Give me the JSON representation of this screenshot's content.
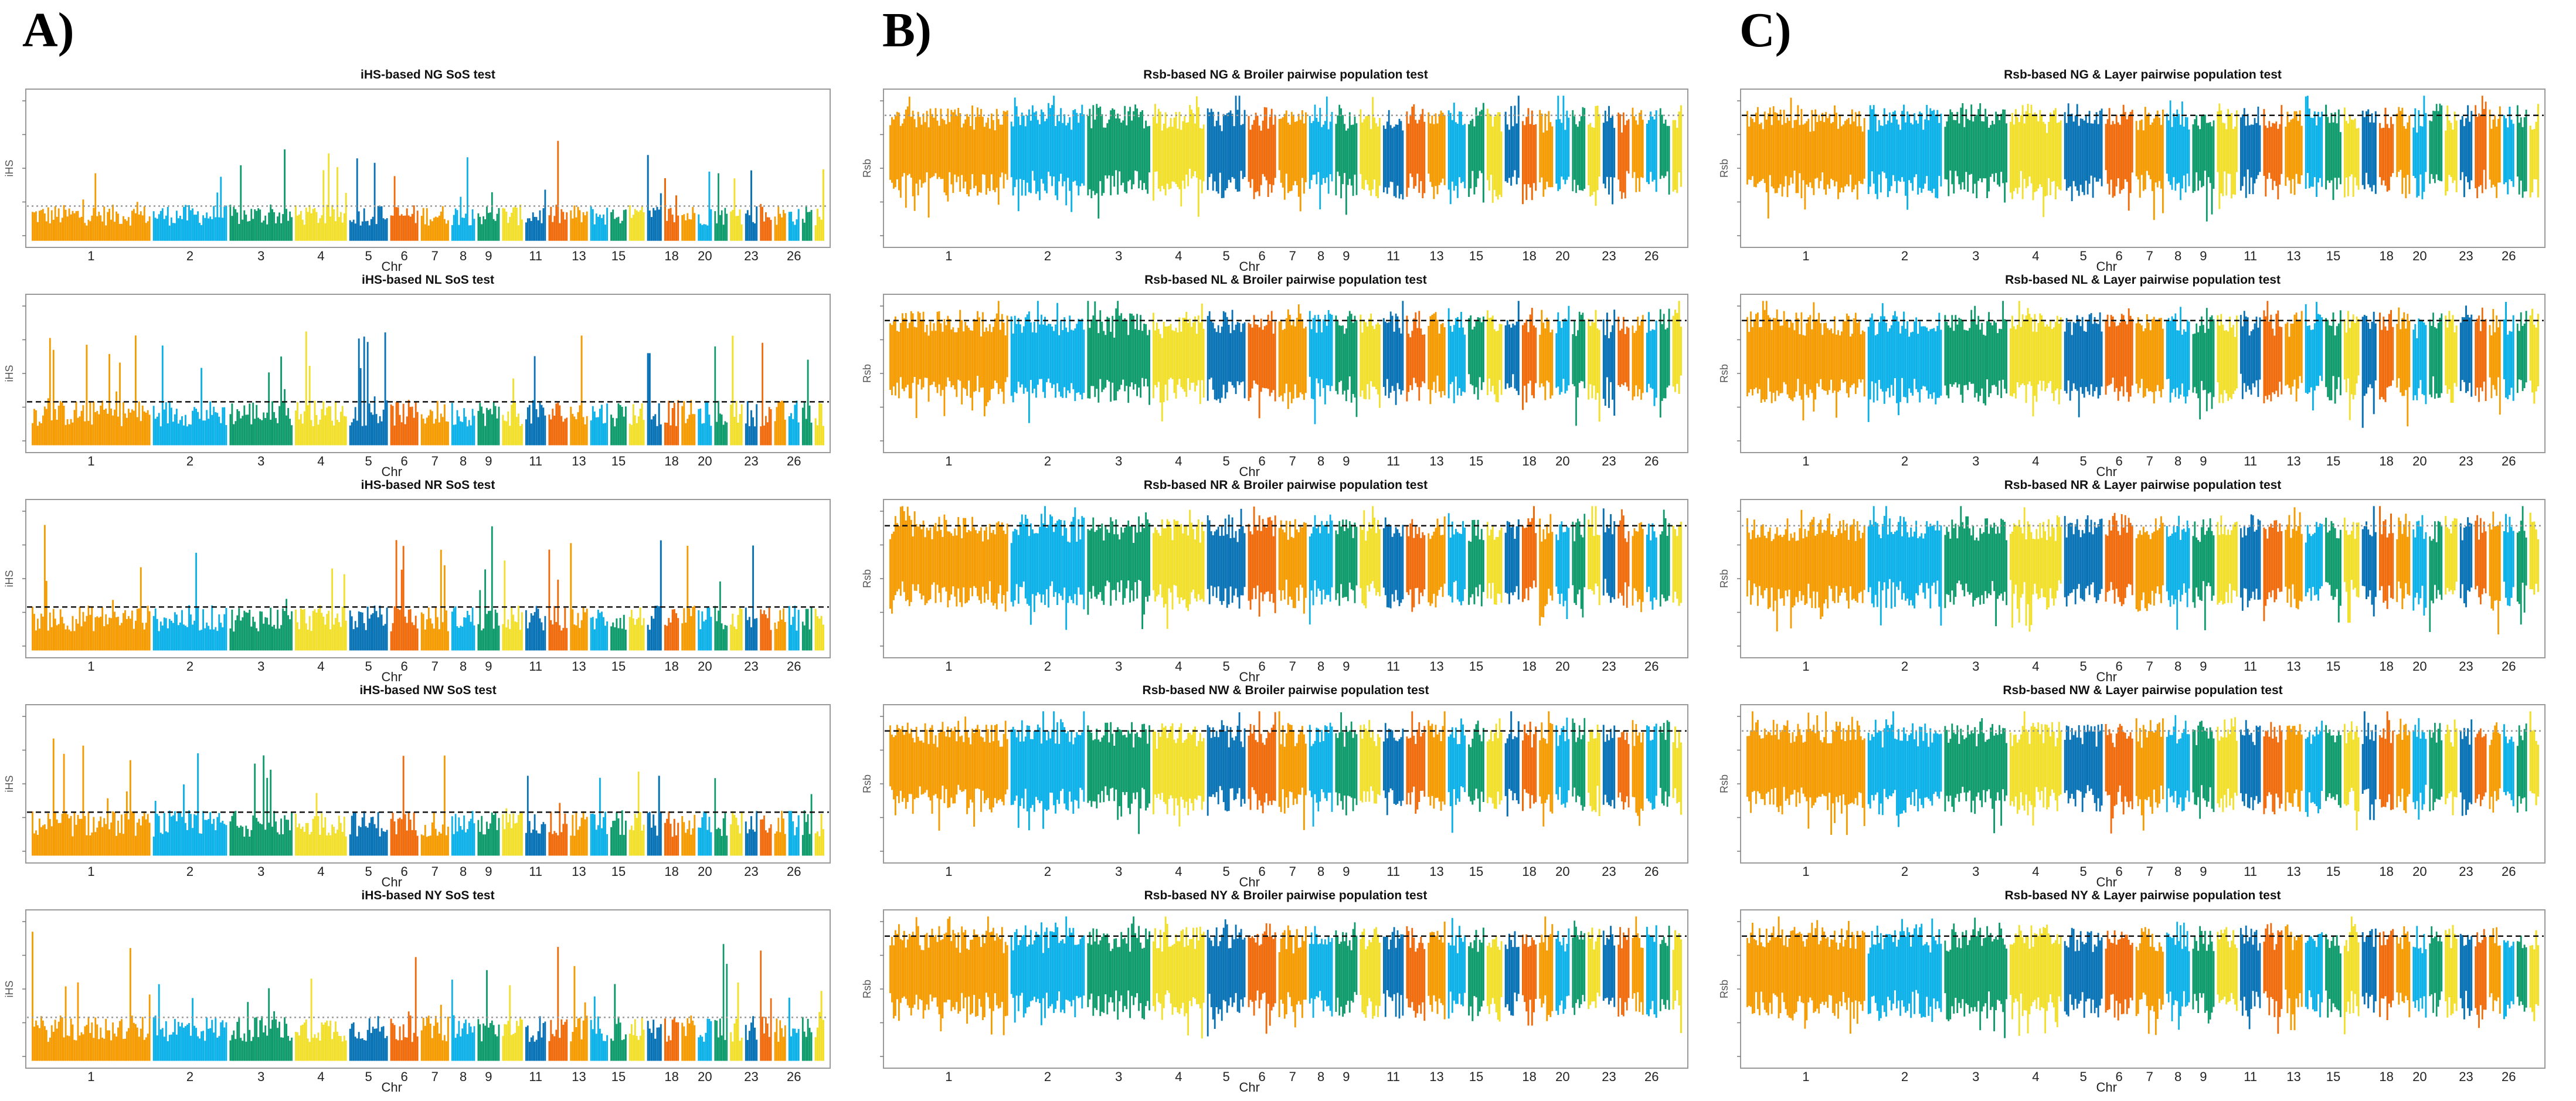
{
  "panel_letters": {
    "a": "A)",
    "b": "B)",
    "c": "C)"
  },
  "palette": [
    "#f59b00",
    "#0ab0e8",
    "#0c9a6a",
    "#f2df2a",
    "#0671b4",
    "#f06a0a"
  ],
  "axis_labels": {
    "x": "Chr",
    "y_ihs": "iHS",
    "y_rsb": "Rsb"
  },
  "chromosomes": [
    "1",
    "2",
    "3",
    "4",
    "5",
    "6",
    "7",
    "8",
    "9",
    "10",
    "11",
    "12",
    "13",
    "14",
    "15",
    "16",
    "17",
    "18",
    "19",
    "20",
    "21",
    "22",
    "23",
    "24",
    "25",
    "26",
    "27",
    "28"
  ],
  "chromosome_widths": [
    16,
    10,
    8.5,
    7,
    5.2,
    3.8,
    3.8,
    3.2,
    3,
    2.8,
    2.8,
    2.6,
    2.4,
    2.4,
    2.2,
    2.1,
    2,
    2,
    1.9,
    1.9,
    1.8,
    1.7,
    1.7,
    1.6,
    1.6,
    1.5,
    1.4,
    1.3
  ],
  "tick_chromosomes": [
    "1",
    "2",
    "3",
    "4",
    "5",
    "6",
    "7",
    "8",
    "9",
    "11",
    "13",
    "15",
    "18",
    "20",
    "23",
    "26"
  ],
  "chart_data": [
    {
      "id": "A1",
      "type": "scatter",
      "title": "iHS-based NG SoS test",
      "xlabel": "Chr",
      "ylabel": "iHS",
      "threshold": 2.5,
      "threshold_style": "dotted",
      "ylim": [
        0,
        10
      ]
    },
    {
      "id": "A2",
      "type": "scatter",
      "title": "iHS-based NL SoS test",
      "xlabel": "Chr",
      "ylabel": "iHS",
      "threshold": 2.5,
      "threshold_style": "dashed",
      "ylim": [
        0,
        8
      ]
    },
    {
      "id": "A3",
      "type": "scatter",
      "title": "iHS-based NR SoS test",
      "xlabel": "Chr",
      "ylabel": "iHS",
      "threshold": 2.5,
      "threshold_style": "dashed",
      "ylim": [
        0,
        8
      ]
    },
    {
      "id": "A4",
      "type": "scatter",
      "title": "iHS-based NW SoS test",
      "xlabel": "Chr",
      "ylabel": "iHS",
      "threshold": 2.5,
      "threshold_style": "dashed",
      "ylim": [
        0,
        8
      ]
    },
    {
      "id": "A5",
      "type": "scatter",
      "title": "iHS-based NY SoS test",
      "xlabel": "Chr",
      "ylabel": "iHS",
      "threshold": 2.5,
      "threshold_style": "dotted",
      "ylim": [
        0,
        8
      ]
    },
    {
      "id": "B1",
      "type": "scatter",
      "title": "Rsb-based NG & Broiler pairwise population test",
      "xlabel": "Chr",
      "ylabel": "Rsb",
      "threshold": 2.5,
      "threshold_style": "dotted",
      "ylim": [
        -6,
        4
      ]
    },
    {
      "id": "B2",
      "type": "scatter",
      "title": "Rsb-based NL & Broiler pairwise population test",
      "xlabel": "Chr",
      "ylabel": "Rsb",
      "threshold": 2.5,
      "threshold_style": "dashed",
      "ylim": [
        -6,
        4
      ]
    },
    {
      "id": "B3",
      "type": "scatter",
      "title": "Rsb-based NR & Broiler pairwise population test",
      "xlabel": "Chr",
      "ylabel": "Rsb",
      "threshold": 2.5,
      "threshold_style": "dashed",
      "ylim": [
        -6,
        4
      ]
    },
    {
      "id": "B4",
      "type": "scatter",
      "title": "Rsb-based NW & Broiler pairwise population test",
      "xlabel": "Chr",
      "ylabel": "Rsb",
      "threshold": 2.5,
      "threshold_style": "dashed",
      "ylim": [
        -6,
        4
      ]
    },
    {
      "id": "B5",
      "type": "scatter",
      "title": "Rsb-based NY & Broiler pairwise population test",
      "xlabel": "Chr",
      "ylabel": "Rsb",
      "threshold": 2.5,
      "threshold_style": "dashed",
      "ylim": [
        -6,
        4
      ]
    },
    {
      "id": "C1",
      "type": "scatter",
      "title": "Rsb-based NG & Layer pairwise population test",
      "xlabel": "Chr",
      "ylabel": "Rsb",
      "threshold": 2.5,
      "threshold_style": "dashed",
      "ylim": [
        -6,
        4
      ]
    },
    {
      "id": "C2",
      "type": "scatter",
      "title": "Rsb-based NL & Layer pairwise population test",
      "xlabel": "Chr",
      "ylabel": "Rsb",
      "threshold": 2.5,
      "threshold_style": "dashed",
      "ylim": [
        -6,
        4
      ]
    },
    {
      "id": "C3",
      "type": "scatter",
      "title": "Rsb-based NR & Layer pairwise population test",
      "xlabel": "Chr",
      "ylabel": "Rsb",
      "threshold": 2.5,
      "threshold_style": "dotted",
      "ylim": [
        -6,
        4
      ]
    },
    {
      "id": "C4",
      "type": "scatter",
      "title": "Rsb-based NW & Layer pairwise population test",
      "xlabel": "Chr",
      "ylabel": "Rsb",
      "threshold": 2.5,
      "threshold_style": "dotted",
      "ylim": [
        -6,
        4
      ]
    },
    {
      "id": "C5",
      "type": "scatter",
      "title": "Rsb-based NY & Layer pairwise population test",
      "xlabel": "Chr",
      "ylabel": "Rsb",
      "threshold": 2.5,
      "threshold_style": "dashed",
      "ylim": [
        -6,
        4
      ]
    }
  ]
}
